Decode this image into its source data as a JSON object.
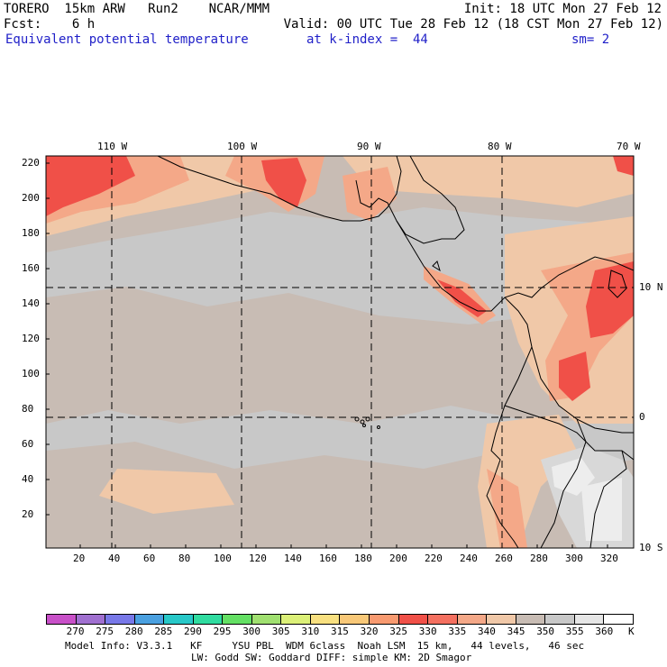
{
  "header": {
    "model": "TORERO  15km ARW   Run2    NCAR/MMM",
    "init": "Init: 18 UTC Mon 27 Feb 12",
    "fcst": "Fcst:    6 h",
    "valid": "Valid: 00 UTC Tue 28 Feb 12 (18 CST Mon 27 Feb 12)",
    "field": "Equivalent potential temperature",
    "level": "at k-index =  44",
    "smoothing": "sm= 2"
  },
  "axes": {
    "top_lon": [
      "110 W",
      "100 W",
      "90 W",
      "80 W",
      "70 W"
    ],
    "left_y": [
      "220",
      "200",
      "180",
      "160",
      "140",
      "120",
      "100",
      "80",
      "60",
      "40",
      "20"
    ],
    "bottom_x": [
      "20",
      "40",
      "60",
      "80",
      "100",
      "120",
      "140",
      "160",
      "180",
      "200",
      "220",
      "240",
      "260",
      "280",
      "300",
      "320"
    ],
    "right_lat": [
      "10 N",
      "0",
      "10 S"
    ]
  },
  "legend": {
    "labels": [
      "270",
      "275",
      "280",
      "285",
      "290",
      "295",
      "300",
      "305",
      "310",
      "315",
      "320",
      "325",
      "330",
      "335",
      "340",
      "345",
      "350",
      "355",
      "360"
    ],
    "unit": "K",
    "colors": [
      "#c850c8",
      "#a070d0",
      "#7878e8",
      "#4aa0e0",
      "#28c8c8",
      "#30dca0",
      "#64e064",
      "#a0e070",
      "#dcf078",
      "#f8e080",
      "#f8c878",
      "#f89a70",
      "#f05048",
      "#f47060",
      "#f4a888",
      "#f0c8a8",
      "#c8bcb4",
      "#c8c8c8",
      "#e6e6e6",
      "#ffffff"
    ]
  },
  "footer": {
    "line1": "Model Info: V3.3.1   KF     YSU PBL  WDM 6class  Noah LSM  15 km,   44 levels,   46 sec",
    "line2": "LW: Godd SW: Goddard DIFF: simple KM: 2D Smagor"
  }
}
